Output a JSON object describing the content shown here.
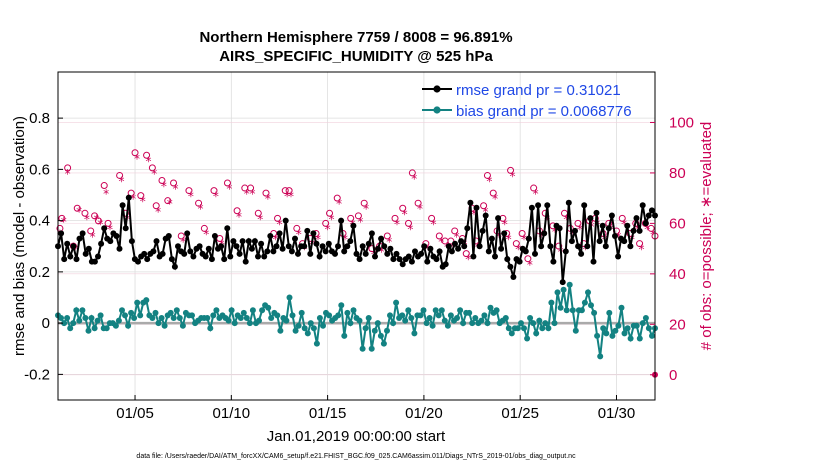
{
  "chart_data": {
    "type": "line",
    "title_line1": "Northern Hemisphere 7759 / 8008 = 96.891%",
    "title_line2": "AIRS_SPECIFIC_HUMIDITY @ 525 hPa",
    "ylabel_left": "rmse and bias (model - observation)",
    "ylabel_right": "# of obs: o=possible; ∗=evaluated",
    "xlabel": "Jan.01,2019 00:00:00 start",
    "footer": "data file: /Users/raeder/DAI/ATM_forcXX/CAM6_setup/f.e21.FHIST_BGC.f09_025.CAM6assim.011/Diags_NTrS_2019-01/obs_diag_output.nc",
    "x_range_days": [
      1,
      32
    ],
    "ylim_left": [
      -0.3,
      0.98
    ],
    "ylim_right": [
      -10,
      120
    ],
    "left_ticks": [
      -0.2,
      0,
      0.2,
      0.4,
      0.6,
      0.8
    ],
    "left_tick_labels": [
      "-0.2",
      "0",
      "0.2",
      "0.4",
      "0.6",
      "0.8"
    ],
    "right_ticks": [
      0,
      20,
      40,
      60,
      80,
      100
    ],
    "right_tick_labels": [
      "0",
      "20",
      "40",
      "60",
      "80",
      "100"
    ],
    "x_ticks": [
      5,
      10,
      15,
      20,
      25,
      30
    ],
    "x_tick_labels": [
      "01/05",
      "01/10",
      "01/15",
      "01/20",
      "01/25",
      "01/30"
    ],
    "grid": true,
    "legend_position": "top-right",
    "colors": {
      "rmse": "#000000",
      "bias": "#138282",
      "legend_text": "#1f48e6",
      "obs": "#cc0055",
      "zero_line": "#aaaaaa",
      "grid": "#dedede"
    },
    "series": [
      {
        "name": "rmse grand pr = 0.31021",
        "key": "rmse",
        "color": "#000000",
        "values": [
          0.3,
          0.35,
          0.25,
          0.31,
          0.26,
          0.3,
          0.25,
          0.33,
          0.35,
          0.27,
          0.29,
          0.24,
          0.24,
          0.26,
          0.31,
          0.37,
          0.33,
          0.32,
          0.35,
          0.34,
          0.29,
          0.46,
          0.37,
          0.49,
          0.32,
          0.25,
          0.24,
          0.26,
          0.27,
          0.25,
          0.27,
          0.28,
          0.32,
          0.26,
          0.27,
          0.33,
          0.34,
          0.25,
          0.22,
          0.3,
          0.28,
          0.27,
          0.35,
          0.28,
          0.26,
          0.29,
          0.3,
          0.27,
          0.26,
          0.29,
          0.25,
          0.34,
          0.29,
          0.3,
          0.25,
          0.37,
          0.26,
          0.32,
          0.3,
          0.27,
          0.32,
          0.24,
          0.32,
          0.29,
          0.32,
          0.26,
          0.31,
          0.26,
          0.28,
          0.34,
          0.28,
          0.3,
          0.35,
          0.29,
          0.4,
          0.3,
          0.28,
          0.33,
          0.27,
          0.3,
          0.3,
          0.36,
          0.27,
          0.35,
          0.31,
          0.26,
          0.3,
          0.28,
          0.31,
          0.28,
          0.27,
          0.3,
          0.4,
          0.28,
          0.3,
          0.32,
          0.38,
          0.27,
          0.25,
          0.3,
          0.27,
          0.31,
          0.35,
          0.26,
          0.29,
          0.33,
          0.3,
          0.27,
          0.29,
          0.25,
          0.27,
          0.25,
          0.23,
          0.25,
          0.26,
          0.24,
          0.28,
          0.26,
          0.27,
          0.3,
          0.24,
          0.29,
          0.26,
          0.25,
          0.28,
          0.22,
          0.23,
          0.3,
          0.28,
          0.31,
          0.29,
          0.32,
          0.3,
          0.37,
          0.47,
          0.26,
          0.45,
          0.3,
          0.36,
          0.42,
          0.28,
          0.33,
          0.26,
          0.41,
          0.29,
          0.35,
          0.25,
          0.22,
          0.18,
          0.25,
          0.24,
          0.29,
          0.28,
          0.33,
          0.45,
          0.27,
          0.46,
          0.3,
          0.35,
          0.46,
          0.3,
          0.24,
          0.38,
          0.37,
          0.16,
          0.28,
          0.47,
          0.32,
          0.36,
          0.3,
          0.27,
          0.46,
          0.3,
          0.41,
          0.24,
          0.43,
          0.32,
          0.38,
          0.3,
          0.37,
          0.42,
          0.34,
          0.26,
          0.33,
          0.32,
          0.38,
          0.3,
          0.36,
          0.41,
          0.36,
          0.46,
          0.39,
          0.42,
          0.44,
          0.42
        ]
      },
      {
        "name": "bias grand pr = 0.0068776",
        "key": "bias",
        "color": "#138282",
        "values": [
          0.03,
          0.02,
          0.0,
          0.02,
          -0.02,
          0.0,
          0.05,
          0.01,
          0.05,
          0.02,
          -0.03,
          0.02,
          -0.02,
          0.01,
          0.03,
          -0.02,
          -0.02,
          0.0,
          0.0,
          -0.01,
          0.01,
          0.05,
          0.03,
          -0.01,
          0.04,
          0.02,
          0.08,
          0.03,
          0.08,
          0.09,
          0.03,
          0.02,
          0.04,
          0.0,
          0.02,
          -0.01,
          0.03,
          0.04,
          0.02,
          0.05,
          0.02,
          -0.01,
          0.04,
          0.03,
          0.03,
          0.0,
          0.01,
          0.02,
          0.02,
          0.02,
          -0.02,
          0.03,
          0.05,
          0.02,
          0.03,
          0.02,
          0.01,
          0.05,
          0.0,
          0.03,
          0.02,
          0.04,
          0.02,
          0.0,
          0.05,
          0.0,
          0.01,
          0.05,
          0.07,
          0.06,
          0.02,
          0.04,
          0.03,
          -0.03,
          0.02,
          0.01,
          0.1,
          0.03,
          -0.03,
          -0.01,
          0.04,
          -0.02,
          -0.04,
          0.0,
          -0.02,
          -0.08,
          0.02,
          -0.01,
          0.04,
          0.03,
          0.01,
          0.02,
          0.03,
          0.07,
          -0.05,
          0.04,
          0.0,
          0.05,
          0.02,
          0.01,
          -0.1,
          -0.02,
          0.02,
          -0.1,
          -0.03,
          0.0,
          -0.05,
          -0.08,
          -0.03,
          0.03,
          0.0,
          0.08,
          0.02,
          0.03,
          0.01,
          0.05,
          0.02,
          -0.04,
          0.03,
          0.03,
          0.05,
          0.0,
          0.02,
          -0.01,
          0.05,
          0.03,
          0.05,
          0.01,
          -0.01,
          0.03,
          0.01,
          0.02,
          0.05,
          0.0,
          0.04,
          0.04,
          0.0,
          0.02,
          0.0,
          0.01,
          0.03,
          0.0,
          0.06,
          0.04,
          0.05,
          0.0,
          0.01,
          0.02,
          -0.02,
          -0.04,
          -0.02,
          -0.02,
          0.0,
          -0.02,
          -0.06,
          0.02,
          0.0,
          -0.04,
          0.01,
          -0.02,
          0.0,
          -0.02,
          0.08,
          0.0,
          0.12,
          0.06,
          0.13,
          0.05,
          0.15,
          0.05,
          -0.03,
          0.05,
          0.05,
          0.08,
          0.12,
          0.07,
          0.04,
          -0.05,
          -0.13,
          -0.02,
          -0.04,
          0.04,
          -0.05,
          -0.03,
          -0.01,
          0.06,
          -0.04,
          -0.02,
          -0.06,
          -0.01,
          -0.01,
          -0.06,
          0.0,
          0.02,
          -0.02,
          -0.05,
          -0.02
        ]
      }
    ],
    "obs_possible_scatter": [
      [
        1.1,
        58
      ],
      [
        1.2,
        62
      ],
      [
        1.5,
        82
      ],
      [
        1.8,
        51
      ],
      [
        2.0,
        66
      ],
      [
        2.4,
        64
      ],
      [
        2.7,
        57
      ],
      [
        2.9,
        63
      ],
      [
        3.1,
        61
      ],
      [
        3.4,
        75
      ],
      [
        3.6,
        60
      ],
      [
        4.2,
        79
      ],
      [
        4.5,
        64
      ],
      [
        4.8,
        72
      ],
      [
        5.0,
        88
      ],
      [
        5.3,
        71
      ],
      [
        5.6,
        87
      ],
      [
        5.9,
        82
      ],
      [
        6.1,
        67
      ],
      [
        6.4,
        77
      ],
      [
        6.7,
        69
      ],
      [
        7.0,
        76
      ],
      [
        7.4,
        55
      ],
      [
        7.8,
        73
      ],
      [
        8.3,
        68
      ],
      [
        8.6,
        58
      ],
      [
        9.1,
        73
      ],
      [
        9.4,
        54
      ],
      [
        9.8,
        76
      ],
      [
        10.3,
        65
      ],
      [
        10.7,
        74
      ],
      [
        11.0,
        74
      ],
      [
        11.4,
        64
      ],
      [
        11.8,
        72
      ],
      [
        12.2,
        56
      ],
      [
        12.4,
        62
      ],
      [
        12.8,
        73
      ],
      [
        13.0,
        73
      ],
      [
        13.4,
        58
      ],
      [
        13.7,
        52
      ],
      [
        14.1,
        54
      ],
      [
        14.4,
        56
      ],
      [
        14.9,
        60
      ],
      [
        15.1,
        64
      ],
      [
        15.5,
        70
      ],
      [
        15.8,
        56
      ],
      [
        16.2,
        62
      ],
      [
        16.6,
        63
      ],
      [
        16.9,
        68
      ],
      [
        17.3,
        50
      ],
      [
        17.7,
        51
      ],
      [
        18.1,
        55
      ],
      [
        18.5,
        62
      ],
      [
        18.9,
        66
      ],
      [
        19.2,
        60
      ],
      [
        19.4,
        80
      ],
      [
        19.7,
        68
      ],
      [
        20.1,
        52
      ],
      [
        20.4,
        62
      ],
      [
        20.8,
        55
      ],
      [
        21.1,
        53
      ],
      [
        21.4,
        53
      ],
      [
        21.6,
        57
      ],
      [
        22.0,
        54
      ],
      [
        22.2,
        48
      ],
      [
        22.5,
        66
      ],
      [
        22.7,
        53
      ],
      [
        23.1,
        67
      ],
      [
        23.3,
        79
      ],
      [
        23.6,
        72
      ],
      [
        23.8,
        57
      ],
      [
        24.1,
        62
      ],
      [
        24.3,
        56
      ],
      [
        24.5,
        81
      ],
      [
        24.8,
        52
      ],
      [
        25.1,
        56
      ],
      [
        25.4,
        46
      ],
      [
        25.7,
        74
      ],
      [
        26.0,
        57
      ],
      [
        26.3,
        64
      ],
      [
        26.7,
        59
      ],
      [
        27.0,
        51
      ],
      [
        27.3,
        64
      ],
      [
        27.6,
        58
      ],
      [
        28.0,
        60
      ],
      [
        28.3,
        52
      ],
      [
        28.6,
        61
      ],
      [
        28.9,
        62
      ],
      [
        29.3,
        56
      ],
      [
        29.6,
        60
      ],
      [
        30.0,
        57
      ],
      [
        30.3,
        62
      ],
      [
        30.7,
        56
      ],
      [
        31.0,
        60
      ],
      [
        31.2,
        52
      ],
      [
        31.5,
        60
      ],
      [
        31.8,
        58
      ],
      [
        32.0,
        55
      ]
    ],
    "obs_evaluated_scatter": [
      [
        1.1,
        56
      ],
      [
        1.3,
        61
      ],
      [
        1.5,
        80
      ],
      [
        1.9,
        50
      ],
      [
        2.1,
        65
      ],
      [
        2.5,
        62
      ],
      [
        2.8,
        55
      ],
      [
        3.0,
        62
      ],
      [
        3.2,
        60
      ],
      [
        3.5,
        72
      ],
      [
        3.7,
        58
      ],
      [
        4.3,
        77
      ],
      [
        4.6,
        62
      ],
      [
        4.9,
        70
      ],
      [
        5.1,
        86
      ],
      [
        5.4,
        69
      ],
      [
        5.7,
        85
      ],
      [
        6.0,
        80
      ],
      [
        6.2,
        65
      ],
      [
        6.5,
        75
      ],
      [
        6.8,
        68
      ],
      [
        7.1,
        74
      ],
      [
        7.5,
        53
      ],
      [
        7.9,
        71
      ],
      [
        8.4,
        66
      ],
      [
        8.7,
        56
      ],
      [
        9.2,
        71
      ],
      [
        9.5,
        52
      ],
      [
        9.9,
        74
      ],
      [
        10.4,
        63
      ],
      [
        10.8,
        72
      ],
      [
        11.1,
        72
      ],
      [
        11.5,
        62
      ],
      [
        11.9,
        70
      ],
      [
        12.3,
        54
      ],
      [
        12.5,
        60
      ],
      [
        12.9,
        71
      ],
      [
        13.1,
        71
      ],
      [
        13.5,
        56
      ],
      [
        13.8,
        50
      ],
      [
        14.2,
        52
      ],
      [
        14.5,
        54
      ],
      [
        15.0,
        58
      ],
      [
        15.2,
        62
      ],
      [
        15.6,
        68
      ],
      [
        15.9,
        54
      ],
      [
        16.3,
        60
      ],
      [
        16.7,
        61
      ],
      [
        17.0,
        66
      ],
      [
        17.4,
        48
      ],
      [
        17.8,
        49
      ],
      [
        18.2,
        53
      ],
      [
        18.6,
        60
      ],
      [
        19.0,
        64
      ],
      [
        19.3,
        58
      ],
      [
        19.5,
        78
      ],
      [
        19.8,
        66
      ],
      [
        20.2,
        50
      ],
      [
        20.5,
        60
      ],
      [
        20.9,
        53
      ],
      [
        21.2,
        51
      ],
      [
        21.5,
        51
      ],
      [
        21.7,
        55
      ],
      [
        22.1,
        52
      ],
      [
        22.3,
        46
      ],
      [
        22.6,
        64
      ],
      [
        22.8,
        51
      ],
      [
        23.2,
        65
      ],
      [
        23.4,
        77
      ],
      [
        23.7,
        70
      ],
      [
        23.9,
        55
      ],
      [
        24.2,
        60
      ],
      [
        24.4,
        54
      ],
      [
        24.6,
        79
      ],
      [
        24.9,
        50
      ],
      [
        25.2,
        54
      ],
      [
        25.5,
        44
      ],
      [
        25.8,
        72
      ],
      [
        26.1,
        55
      ],
      [
        26.4,
        62
      ],
      [
        26.8,
        57
      ],
      [
        27.1,
        49
      ],
      [
        27.4,
        62
      ],
      [
        27.7,
        56
      ],
      [
        28.1,
        58
      ],
      [
        28.4,
        50
      ],
      [
        28.7,
        59
      ],
      [
        29.0,
        60
      ],
      [
        29.4,
        54
      ],
      [
        29.7,
        58
      ],
      [
        30.1,
        55
      ],
      [
        30.4,
        60
      ],
      [
        30.8,
        54
      ],
      [
        31.1,
        58
      ],
      [
        31.3,
        50
      ],
      [
        31.6,
        58
      ],
      [
        31.9,
        56
      ]
    ],
    "obs_marker_possible": "o",
    "obs_marker_evaluated": "*",
    "edge_marker_value": [
      32.0,
      0
    ]
  }
}
